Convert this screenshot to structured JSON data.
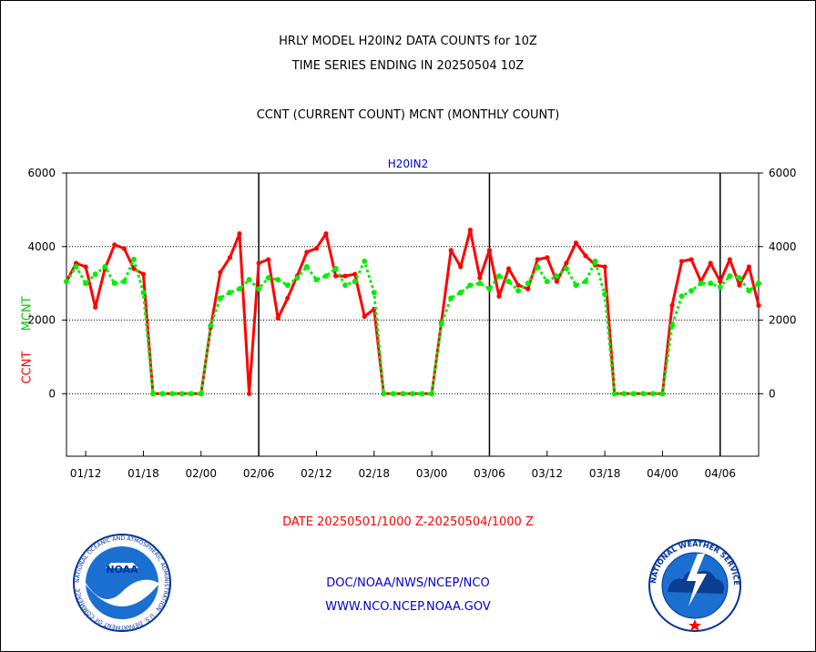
{
  "titles": {
    "line1": "HRLY MODEL H20IN2 DATA COUNTS for 10Z",
    "line2": "TIME SERIES ENDING IN 20250504 10Z",
    "line3": "CCNT (CURRENT COUNT) MCNT (MONTHLY COUNT)"
  },
  "footer": {
    "date_range": "DATE 20250501/1000 Z-20250504/1000 Z",
    "org": "DOC/NOAA/NWS/NCEP/NCO",
    "url": "WWW.NCO.NCEP.NOAA.GOV"
  },
  "logos": {
    "noaa": "NOAA",
    "noaa_ring": "NATIONAL OCEANIC AND ATMOSPHERIC ADMINISTRATION · U.S. DEPARTMENT OF COMMERCE",
    "nws_ring": "NATIONAL WEATHER SERVICE"
  },
  "chart_data": {
    "type": "line",
    "title": "H20IN2",
    "ylabel_ccnt": "CCNT",
    "ylabel_mcnt": "MCNT",
    "ylim": [
      -1700,
      6000
    ],
    "yticks": [
      0,
      2000,
      4000,
      6000
    ],
    "ytick_labels": [
      "0",
      "2000",
      "4000",
      "6000"
    ],
    "xlim": [
      0,
      72
    ],
    "xticks": [
      {
        "x": 2,
        "label": "01/12"
      },
      {
        "x": 8,
        "label": "01/18"
      },
      {
        "x": 14,
        "label": "02/00"
      },
      {
        "x": 20,
        "label": "02/06"
      },
      {
        "x": 26,
        "label": "02/12"
      },
      {
        "x": 32,
        "label": "02/18"
      },
      {
        "x": 38,
        "label": "03/00"
      },
      {
        "x": 44,
        "label": "03/06"
      },
      {
        "x": 50,
        "label": "03/12"
      },
      {
        "x": 56,
        "label": "03/18"
      },
      {
        "x": 62,
        "label": "04/00"
      },
      {
        "x": 68,
        "label": "04/06"
      }
    ],
    "day_boundaries": [
      20,
      44,
      68
    ],
    "dotted_gridlines": [
      0,
      2000,
      4000
    ],
    "series": [
      {
        "name": "CCNT",
        "color": "#ff0000",
        "style": "solid",
        "values": [
          3050,
          3550,
          3450,
          2350,
          3400,
          4050,
          3950,
          3400,
          3250,
          0,
          0,
          0,
          0,
          0,
          0,
          1800,
          3300,
          3700,
          4350,
          0,
          3550,
          3650,
          2050,
          2600,
          3200,
          3850,
          3950,
          4350,
          3200,
          3200,
          3250,
          2100,
          2300,
          0,
          0,
          0,
          0,
          0,
          0,
          1950,
          3900,
          3450,
          4450,
          3150,
          3900,
          2650,
          3400,
          2950,
          2850,
          3650,
          3700,
          3050,
          3550,
          4100,
          3750,
          3500,
          3450,
          0,
          0,
          0,
          0,
          0,
          0,
          2400,
          3600,
          3650,
          3050,
          3550,
          3050,
          3650,
          2950,
          3450,
          2400
        ]
      },
      {
        "name": "MCNT",
        "color": "#00ee00",
        "style": "dotted",
        "values": [
          3050,
          3450,
          3000,
          3250,
          3450,
          3000,
          3050,
          3650,
          2750,
          0,
          0,
          0,
          0,
          0,
          0,
          1850,
          2600,
          2750,
          2850,
          3100,
          2850,
          3150,
          3100,
          2950,
          3150,
          3450,
          3100,
          3200,
          3400,
          2950,
          3050,
          3600,
          2750,
          0,
          0,
          0,
          0,
          0,
          0,
          1900,
          2600,
          2750,
          2950,
          3000,
          2850,
          3200,
          3050,
          2800,
          3000,
          3450,
          3050,
          3200,
          3400,
          2950,
          3050,
          3600,
          2700,
          0,
          0,
          0,
          0,
          0,
          0,
          1850,
          2650,
          2800,
          3000,
          3000,
          2900,
          3200,
          3150,
          2800,
          3000
        ]
      }
    ]
  }
}
